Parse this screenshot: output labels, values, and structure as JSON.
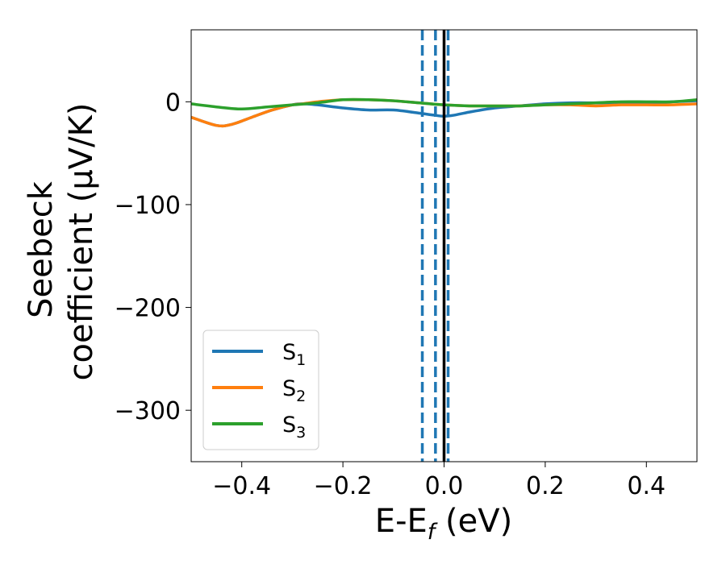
{
  "chart_data": {
    "type": "line",
    "xlabel": {
      "main": "E-E",
      "sub": "f",
      "unit": " (eV)"
    },
    "ylabel": {
      "line1": "Seebeck",
      "line2": "coefficient  (μV/K)"
    },
    "xlim": [
      -0.5,
      0.5
    ],
    "ylim": [
      -350,
      70
    ],
    "xticks": [
      -0.4,
      -0.2,
      0.0,
      0.2,
      0.4
    ],
    "xtick_labels": [
      "−0.4",
      "−0.2",
      "0.0",
      "0.2",
      "0.4"
    ],
    "yticks": [
      0,
      -100,
      -200,
      -300
    ],
    "ytick_labels": [
      "0",
      "−100",
      "−200",
      "−300"
    ],
    "grid": false,
    "legend_placement": "lower-left",
    "series": [
      {
        "name": "S",
        "sub": "1",
        "color": "#1f77b4",
        "x": [
          -0.5,
          -0.45,
          -0.42,
          -0.38,
          -0.34,
          -0.3,
          -0.28,
          -0.25,
          -0.2,
          -0.15,
          -0.1,
          -0.05,
          -0.02,
          0.0,
          0.02,
          0.05,
          0.1,
          0.15,
          0.2,
          0.25,
          0.3,
          0.35,
          0.4,
          0.45,
          0.5
        ],
        "y": [
          -15,
          -23,
          -22,
          -15,
          -8,
          -3,
          -2,
          -3,
          -6,
          -8,
          -8,
          -11,
          -13,
          -14,
          -13,
          -10,
          -6,
          -4,
          -2,
          -1,
          -1,
          -1,
          -1,
          0,
          1
        ]
      },
      {
        "name": "S",
        "sub": "2",
        "color": "#ff7f0e",
        "x": [
          -0.5,
          -0.45,
          -0.42,
          -0.38,
          -0.34,
          -0.3,
          -0.28,
          -0.25,
          -0.2,
          -0.15,
          -0.1,
          -0.05,
          0.0,
          0.05,
          0.1,
          0.15,
          0.2,
          0.25,
          0.3,
          0.35,
          0.4,
          0.45,
          0.5
        ],
        "y": [
          -15,
          -23,
          -22,
          -15,
          -8,
          -3,
          -2,
          0,
          2,
          2,
          1,
          -1,
          -3,
          -4,
          -4,
          -4,
          -3,
          -3,
          -4,
          -3,
          -3,
          -3,
          -2
        ]
      },
      {
        "name": "S",
        "sub": "3",
        "color": "#2ca02c",
        "x": [
          -0.5,
          -0.45,
          -0.4,
          -0.35,
          -0.3,
          -0.25,
          -0.2,
          -0.15,
          -0.1,
          -0.05,
          0.0,
          0.05,
          0.1,
          0.15,
          0.2,
          0.25,
          0.3,
          0.35,
          0.4,
          0.45,
          0.5
        ],
        "y": [
          -2,
          -5,
          -7,
          -5,
          -3,
          -1,
          2,
          2,
          1,
          -1,
          -3,
          -4,
          -4,
          -4,
          -3,
          -2,
          -1,
          0,
          0,
          0,
          2
        ]
      }
    ],
    "vlines": [
      {
        "x": -0.043,
        "style": "dashed",
        "color": "#1f77b4"
      },
      {
        "x": -0.017,
        "style": "dashed",
        "color": "#1f77b4"
      },
      {
        "x": 0.008,
        "style": "dashed",
        "color": "#1f77b4"
      },
      {
        "x": 0.0,
        "style": "solid",
        "color": "#000000"
      }
    ]
  }
}
